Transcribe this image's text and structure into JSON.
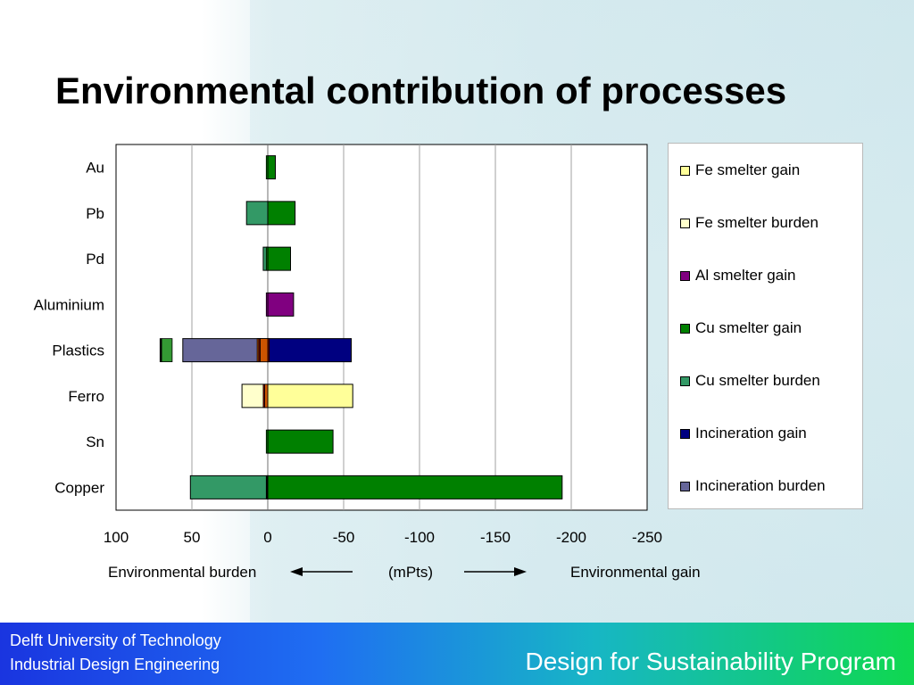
{
  "slide": {
    "title": "Environmental contribution of processes"
  },
  "footer": {
    "university": "Delft University of Technology",
    "faculty": "Industrial Design Engineering",
    "program": "Design for Sustainability Program"
  },
  "colors": {
    "fe_smelter_gain": "#ffff99",
    "fe_smelter_burden": "#ffffcc",
    "al_smelter_gain": "#800080",
    "cu_smelter_gain": "#008000",
    "cu_smelter_burden": "#339966",
    "incineration_gain": "#000080",
    "incineration_burden": "#666699",
    "other_orange": "#cc5500",
    "other_darkred": "#800000",
    "other_green": "#339933",
    "other_black": "#000000",
    "footer_gradient_start": "#1a35e0",
    "footer_gradient_end": "#0fd84f"
  },
  "chart_data": {
    "type": "bar",
    "orientation": "horizontal",
    "stacked": true,
    "x_reversed": true,
    "xlim": [
      100,
      -250
    ],
    "x_ticks": [
      "100",
      "50",
      "0",
      "-50",
      "-100",
      "-150",
      "-200",
      "-250"
    ],
    "x_tick_values": [
      100,
      50,
      0,
      -50,
      -100,
      -150,
      -200,
      -250
    ],
    "grid": "vertical",
    "legend_position": "right",
    "categories": [
      "Au",
      "Pb",
      "Pd",
      "Aluminium",
      "Plastics",
      "Ferro",
      "Sn",
      "Copper"
    ],
    "axis_texts": {
      "burden": "Environmental burden",
      "unit": "(mPts)",
      "gain": "Environmental gain"
    },
    "series": [
      {
        "name": "Fe smelter gain",
        "key": "fe_smelter_gain",
        "values": [
          0,
          0,
          0,
          0,
          0,
          -56,
          0,
          0
        ]
      },
      {
        "name": "Fe smelter burden",
        "key": "fe_smelter_burden",
        "values": [
          0,
          0,
          0,
          0,
          0,
          17,
          0,
          0
        ]
      },
      {
        "name": "Al smelter gain",
        "key": "al_smelter_gain",
        "values": [
          0,
          0,
          0,
          -17,
          0,
          0,
          0,
          0
        ]
      },
      {
        "name": "Cu smelter gain",
        "key": "cu_smelter_gain",
        "values": [
          -5,
          -18,
          -15,
          0,
          0,
          0,
          -43,
          -194
        ]
      },
      {
        "name": "Cu smelter burden",
        "key": "cu_smelter_burden",
        "values": [
          0,
          14,
          3,
          0,
          0,
          0,
          0,
          51
        ]
      },
      {
        "name": "Incineration gain",
        "key": "incineration_gain",
        "values": [
          0,
          0,
          0,
          0,
          -55,
          0,
          0,
          0
        ]
      },
      {
        "name": "Incineration burden",
        "key": "incineration_burden",
        "values": [
          0,
          0,
          0,
          0,
          56,
          0,
          0,
          0
        ]
      }
    ],
    "other_segments": [
      {
        "color_key": "cu_smelter_gain",
        "category": "Au",
        "start": 0,
        "end": 1
      },
      {
        "color_key": "cu_smelter_gain",
        "category": "Pd",
        "start": 0,
        "end": 1
      },
      {
        "color_key": "al_smelter_gain",
        "category": "Aluminium",
        "start": 0,
        "end": 1
      },
      {
        "color_key": "other_darkred",
        "category": "Plastics",
        "start": 0,
        "end": -1
      },
      {
        "color_key": "other_orange",
        "category": "Plastics",
        "start": 0,
        "end": 5
      },
      {
        "color_key": "other_darkred",
        "category": "Plastics",
        "start": 5,
        "end": 6
      },
      {
        "color_key": "other_orange",
        "category": "Plastics",
        "start": 6,
        "end": 7
      },
      {
        "color_key": "other_green",
        "category": "Plastics",
        "start": 63,
        "end": 70
      },
      {
        "color_key": "other_black",
        "category": "Plastics",
        "start": 70,
        "end": 71
      },
      {
        "color_key": "other_orange",
        "category": "Ferro",
        "start": 0,
        "end": 2
      },
      {
        "color_key": "other_darkred",
        "category": "Ferro",
        "start": 2,
        "end": 3
      },
      {
        "color_key": "cu_smelter_gain",
        "category": "Sn",
        "start": 0,
        "end": 1
      },
      {
        "color_key": "other_black",
        "category": "Copper",
        "start": 0,
        "end": 1
      }
    ]
  }
}
